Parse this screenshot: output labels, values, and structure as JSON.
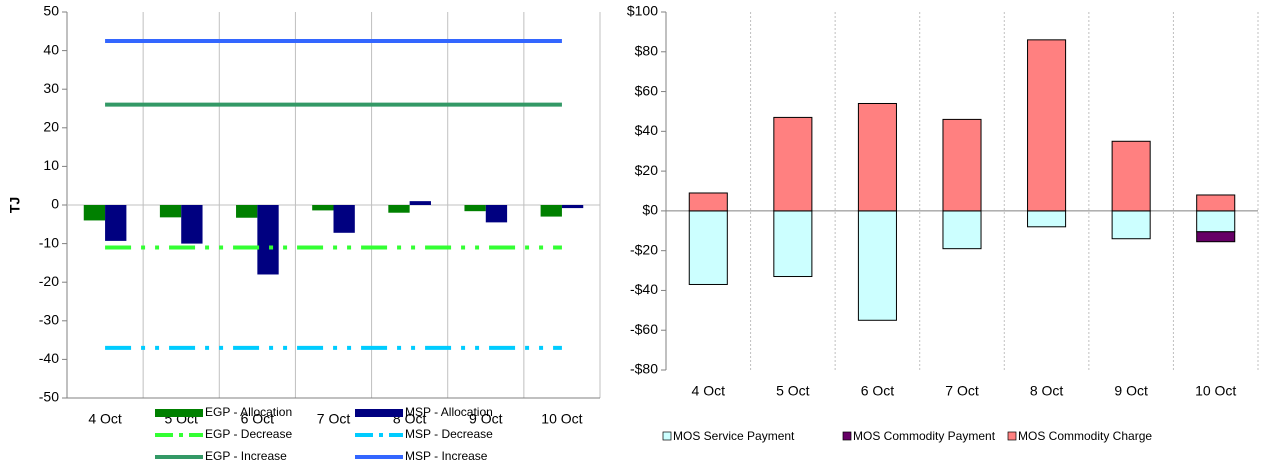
{
  "chart_data": [
    {
      "type": "bar_line",
      "y_label": "TJ",
      "categories": [
        "4 Oct",
        "5 Oct",
        "6 Oct",
        "7 Oct",
        "8 Oct",
        "9 Oct",
        "10 Oct"
      ],
      "ylim": [
        -50,
        50
      ],
      "yticks": [
        -50,
        -40,
        -30,
        -20,
        -10,
        0,
        10,
        20,
        30,
        40,
        50
      ],
      "series": [
        {
          "name": "EGP - Allocation",
          "type": "bar",
          "color": "#008000",
          "values": [
            -4,
            -3.2,
            -3.3,
            -1.4,
            -2,
            -1.6,
            -3
          ]
        },
        {
          "name": "MSP - Allocation",
          "type": "bar",
          "color": "#000080",
          "values": [
            -9.3,
            -10,
            -18,
            -7.2,
            1,
            -4.5,
            -0.8
          ]
        },
        {
          "name": "EGP - Decrease",
          "type": "line",
          "dash": "dash-dot-dot",
          "color": "#33ff33",
          "values": [
            -11,
            -11,
            -11,
            -11,
            -11,
            -11,
            -11
          ]
        },
        {
          "name": "MSP - Decrease",
          "type": "line",
          "dash": "dash-dot-dot",
          "color": "#00ccff",
          "values": [
            -37,
            -37,
            -37,
            -37,
            -37,
            -37,
            -37
          ]
        },
        {
          "name": "EGP - Increase",
          "type": "line",
          "color": "#339966",
          "values": [
            26,
            26,
            26,
            26,
            26,
            26,
            26
          ]
        },
        {
          "name": "MSP - Increase",
          "type": "line",
          "color": "#3366ff",
          "values": [
            42.5,
            42.5,
            42.5,
            42.5,
            42.5,
            42.5,
            42.5
          ]
        }
      ]
    },
    {
      "type": "stacked_bar",
      "categories": [
        "4 Oct",
        "5 Oct",
        "6 Oct",
        "7 Oct",
        "8 Oct",
        "9 Oct",
        "10 Oct"
      ],
      "ylim": [
        -80,
        100
      ],
      "yticks": [
        {
          "value": -80,
          "label": "-$80"
        },
        {
          "value": -60,
          "label": "-$60"
        },
        {
          "value": -40,
          "label": "-$40"
        },
        {
          "value": -20,
          "label": "-$20"
        },
        {
          "value": 0,
          "label": "$0"
        },
        {
          "value": 20,
          "label": "$20"
        },
        {
          "value": 40,
          "label": "$40"
        },
        {
          "value": 60,
          "label": "$60"
        },
        {
          "value": 80,
          "label": "$80"
        },
        {
          "value": 100,
          "label": "$100"
        }
      ],
      "grid": true,
      "series": [
        {
          "name": "MOS Service Payment",
          "color": "#ccffff",
          "values": [
            -37,
            -33,
            -55,
            -19,
            -8,
            -14,
            -10.5
          ]
        },
        {
          "name": "MOS Commodity Payment",
          "color": "#660066",
          "values": [
            0,
            0,
            0,
            0,
            0,
            0,
            -5
          ]
        },
        {
          "name": "MOS Commodity Charge",
          "color": "#ff8080",
          "values": [
            9,
            47,
            54,
            46,
            86,
            35,
            8
          ]
        }
      ]
    }
  ]
}
